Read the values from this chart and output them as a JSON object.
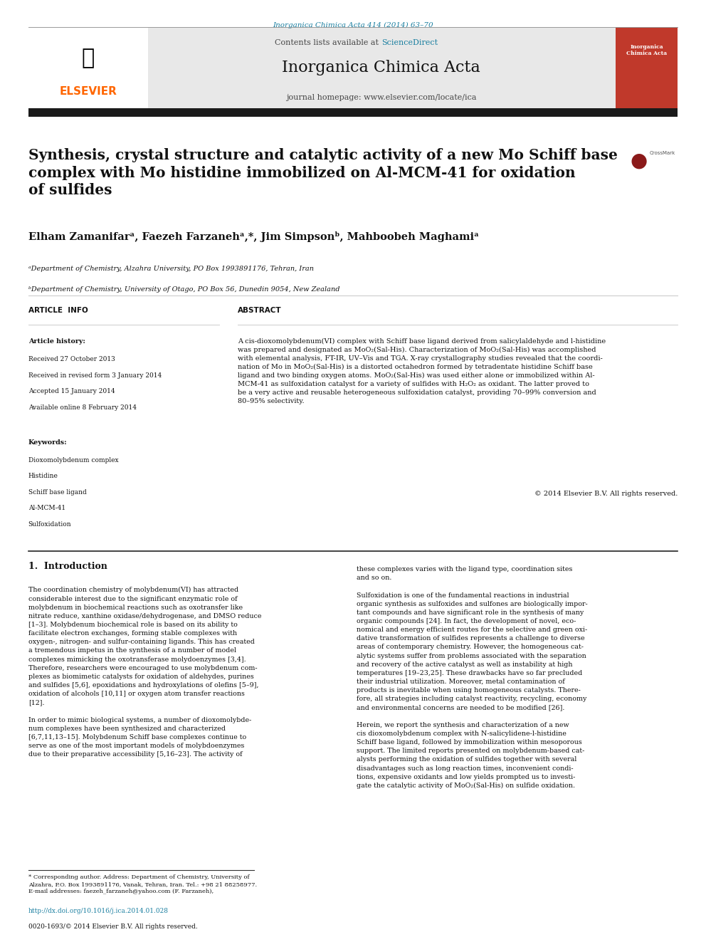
{
  "page_background": "#ffffff",
  "top_citation": "Inorganica Chimica Acta 414 (2014) 63–70",
  "top_citation_color": "#1a7fa0",
  "header_bg": "#e8e8e8",
  "header_contents_text": "Contents lists available at ",
  "header_sciencedirect": "ScienceDirect",
  "header_sciencedirect_color": "#1a7fa0",
  "journal_name": "Inorganica Chimica Acta",
  "journal_homepage": "journal homepage: www.elsevier.com/locate/ica",
  "thick_bar_color": "#1a1a1a",
  "article_title": "Synthesis, crystal structure and catalytic activity of a new Mo Schiff base\ncomplex with Mo histidine immobilized on Al-MCM-41 for oxidation\nof sulfides",
  "authors": "Elham Zamanifarᵃ, Faezeh Farzanehᵃ,*, Jim Simpsonᵇ, Mahboobeh Maghamiᵃ",
  "affil_a": "ᵃDepartment of Chemistry, Alzahra University, PO Box 1993891176, Tehran, Iran",
  "affil_b": "ᵇDepartment of Chemistry, University of Otago, PO Box 56, Dunedin 9054, New Zealand",
  "divider_color": "#cccccc",
  "article_info_title": "ARTICLE  INFO",
  "article_history_title": "Article history:",
  "article_history_lines": [
    "Received 27 October 2013",
    "Received in revised form 3 January 2014",
    "Accepted 15 January 2014",
    "Available online 8 February 2014"
  ],
  "keywords_title": "Keywords:",
  "keywords_lines": [
    "Dioxomolybdenum complex",
    "Histidine",
    "Schiff base ligand",
    "Al-MCM-41",
    "Sulfoxidation"
  ],
  "abstract_title": "ABSTRACT",
  "abstract_text": "A cis-dioxomolybdenum(VI) complex with Schiff base ligand derived from salicylaldehyde and l-histidine\nwas prepared and designated as MoO₂(Sal-His). Characterization of MoO₂(Sal-His) was accomplished\nwith elemental analysis, FT-IR, UV–Vis and TGA. X-ray crystallography studies revealed that the coordi-\nnation of Mo in MoO₂(Sal-His) is a distorted octahedron formed by tetradentate histidine Schiff base\nligand and two binding oxygen atoms. MoO₂(Sal-His) was used either alone or immobilized within Al-\nMCM-41 as sulfoxidation catalyst for a variety of sulfides with H₂O₂ as oxidant. The latter proved to\nbe a very active and reusable heterogeneous sulfoxidation catalyst, providing 70–99% conversion and\n80–95% selectivity.",
  "copyright_text": "© 2014 Elsevier B.V. All rights reserved.",
  "intro_title": "1.  Introduction",
  "intro_col1": "The coordination chemistry of molybdenum(VI) has attracted\nconsiderable interest due to the significant enzymatic role of\nmolybdenum in biochemical reactions such as oxotransfer like\nnitrate reduce, xanthine oxidase/dehydrogenase, and DMSO reduce\n[1–3]. Molybdenum biochemical role is based on its ability to\nfacilitate electron exchanges, forming stable complexes with\noxygen-, nitrogen- and sulfur-containing ligands. This has created\na tremendous impetus in the synthesis of a number of model\ncomplexes mimicking the oxotransferase molydoenzymes [3,4].\nTherefore, researchers were encouraged to use molybdenum com-\nplexes as biomimetic catalysts for oxidation of aldehydes, purines\nand sulfides [5,6], epoxidations and hydroxylations of olefins [5–9],\noxidation of alcohols [10,11] or oxygen atom transfer reactions\n[12].\n\nIn order to mimic biological systems, a number of dioxomolybde-\nnum complexes have been synthesized and characterized\n[6,7,11,13–15]. Molybdenum Schiff base complexes continue to\nserve as one of the most important models of molybdoenzymes\ndue to their preparative accessibility [5,16–23]. The activity of",
  "intro_col2": "these complexes varies with the ligand type, coordination sites\nand so on.\n\nSulfoxidation is one of the fundamental reactions in industrial\norganic synthesis as sulfoxides and sulfones are biologically impor-\ntant compounds and have significant role in the synthesis of many\norganic compounds [24]. In fact, the development of novel, eco-\nnomical and energy efficient routes for the selective and green oxi-\ndative transformation of sulfides represents a challenge to diverse\nareas of contemporary chemistry. However, the homogeneous cat-\nalytic systems suffer from problems associated with the separation\nand recovery of the active catalyst as well as instability at high\ntemperatures [19–23,25]. These drawbacks have so far precluded\ntheir industrial utilization. Moreover, metal contamination of\nproducts is inevitable when using homogeneous catalysts. There-\nfore, all strategies including catalyst reactivity, recycling, economy\nand environmental concerns are needed to be modified [26].\n\nHerein, we report the synthesis and characterization of a new\ncis dioxomolybdenum complex with N-salicylidene-l-histidine\nSchiff base ligand, followed by immobilization within mesoporous\nsupport. The limited reports presented on molybdenum-based cat-\nalysts performing the oxidation of sulfides together with several\ndisadvantages such as long reaction times, inconvenient condi-\ntions, expensive oxidants and low yields prompted us to investi-\ngate the catalytic activity of MoO₂(Sal-His) on sulfide oxidation.",
  "footnote_star": "* Corresponding author. Address: Department of Chemistry, University of\nAlzahra, P.O. Box 1993891176, Vanak, Tehran, Iran. Tel.: +98 21 88258977.\nE-mail addresses: faezeh_farzaneh@yahoo.com (F. Farzaneh),",
  "doi_text": "http://dx.doi.org/10.1016/j.ica.2014.01.028",
  "doi_color": "#1a7fa0",
  "issn_text": "0020-1693/© 2014 Elsevier B.V. All rights reserved.",
  "elsevier_color": "#ff6600",
  "col_divider_color": "#888888"
}
